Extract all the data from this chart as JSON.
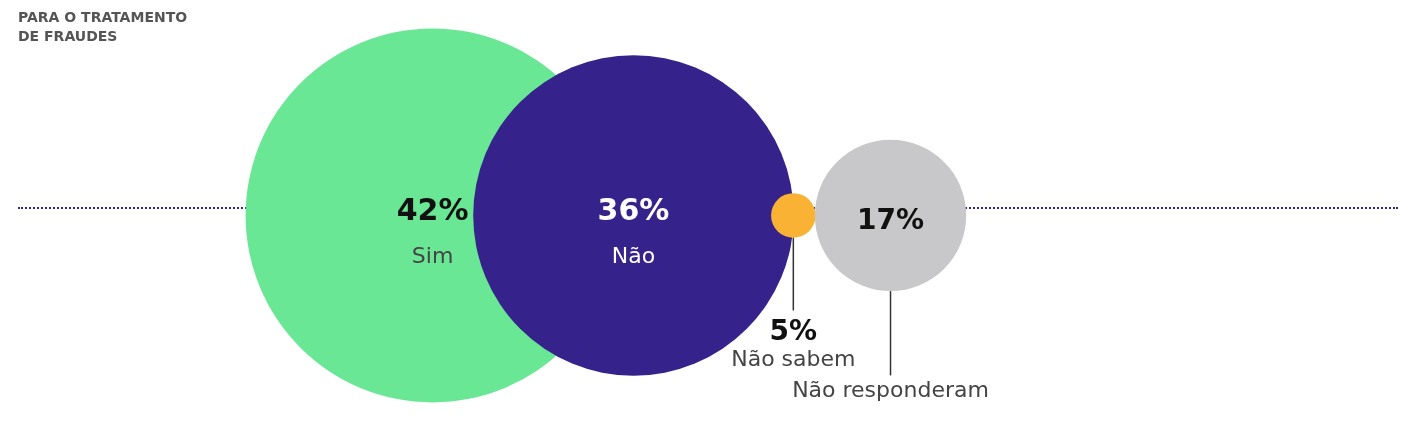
{
  "chart_data": {
    "type": "other",
    "title": "PARA O TRATAMENTO\nDE FRAUDES",
    "categories": [
      "Sim",
      "Não",
      "Não sabem",
      "Não responderam"
    ],
    "values": [
      42,
      36,
      5,
      17
    ],
    "value_labels": [
      "42%",
      "36%",
      "5%",
      "17%"
    ],
    "colors": [
      "#69e794",
      "#35228a",
      "#f9b233",
      "#c8c8ca"
    ]
  }
}
